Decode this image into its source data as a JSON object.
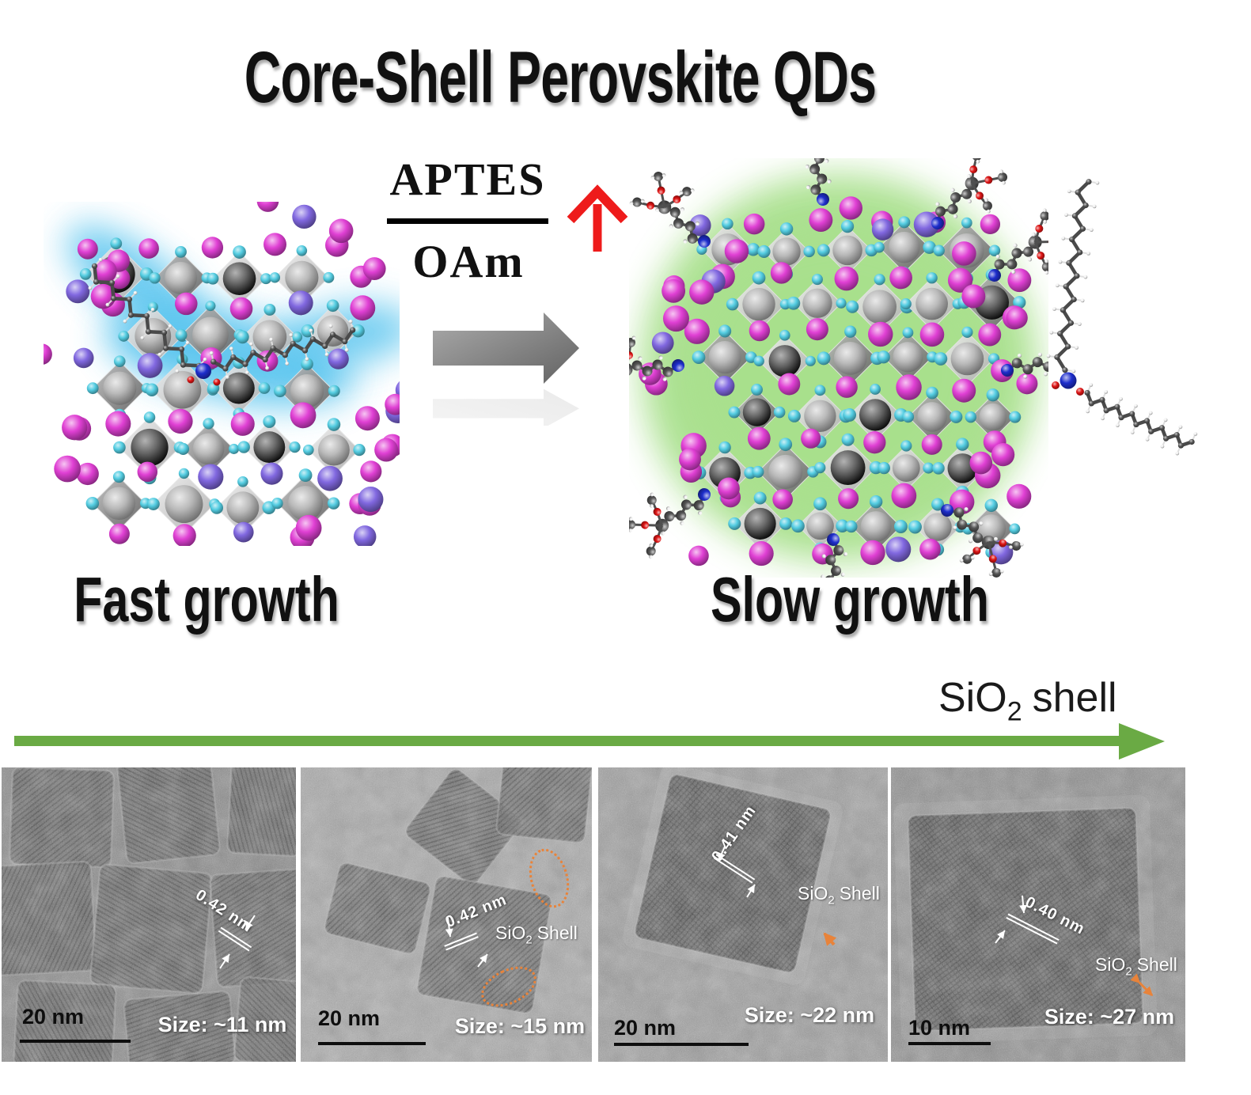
{
  "title": "Core-Shell Perovskite QDs",
  "reaction": {
    "numerator": "APTES",
    "denominator": "OAm"
  },
  "growth_labels": {
    "fast": "Fast growth",
    "slow": "Slow growth"
  },
  "shell_arrow": {
    "prefix": "SiO",
    "sub": "2",
    "suffix": "shell"
  },
  "colors": {
    "arrow_green": "#6aaa44",
    "arrow_red": "#ee1b1b",
    "arrow_gray": "#8c8c8c",
    "halide_cyan": "#54cde2",
    "cation_magenta": "#e040d4",
    "cation_purple": "#8168e0",
    "lead_gray": "#bababa",
    "ligand_blue_glow": "#55c3ee",
    "aptes_green_glow": "#a8e08c",
    "annotation_orange": "#e8833a",
    "nitrogen_blue": "#1e2ecc",
    "oxygen_red": "#dd1414",
    "carbon_gray": "#565656",
    "hydrogen_white": "#f2f2f2"
  },
  "tem_panels": [
    {
      "d_spacing": "0.42 nm",
      "scale_bar": "20 nm",
      "size_label": "Size: ~11 nm"
    },
    {
      "d_spacing": "0.42 nm",
      "scale_bar": "20 nm",
      "size_label": "Size: ~15 nm",
      "shell": {
        "prefix": "SiO",
        "sub": "2",
        "suffix": "Shell"
      }
    },
    {
      "d_spacing": "0.41 nm",
      "scale_bar": "20 nm",
      "size_label": "Size: ~22 nm",
      "shell": {
        "prefix": "SiO",
        "sub": "2",
        "suffix": "Shell"
      }
    },
    {
      "d_spacing": "0.40 nm",
      "scale_bar": "10 nm",
      "size_label": "Size: ~27 nm",
      "shell": {
        "prefix": "SiO",
        "sub": "2",
        "suffix": "Shell"
      }
    }
  ]
}
